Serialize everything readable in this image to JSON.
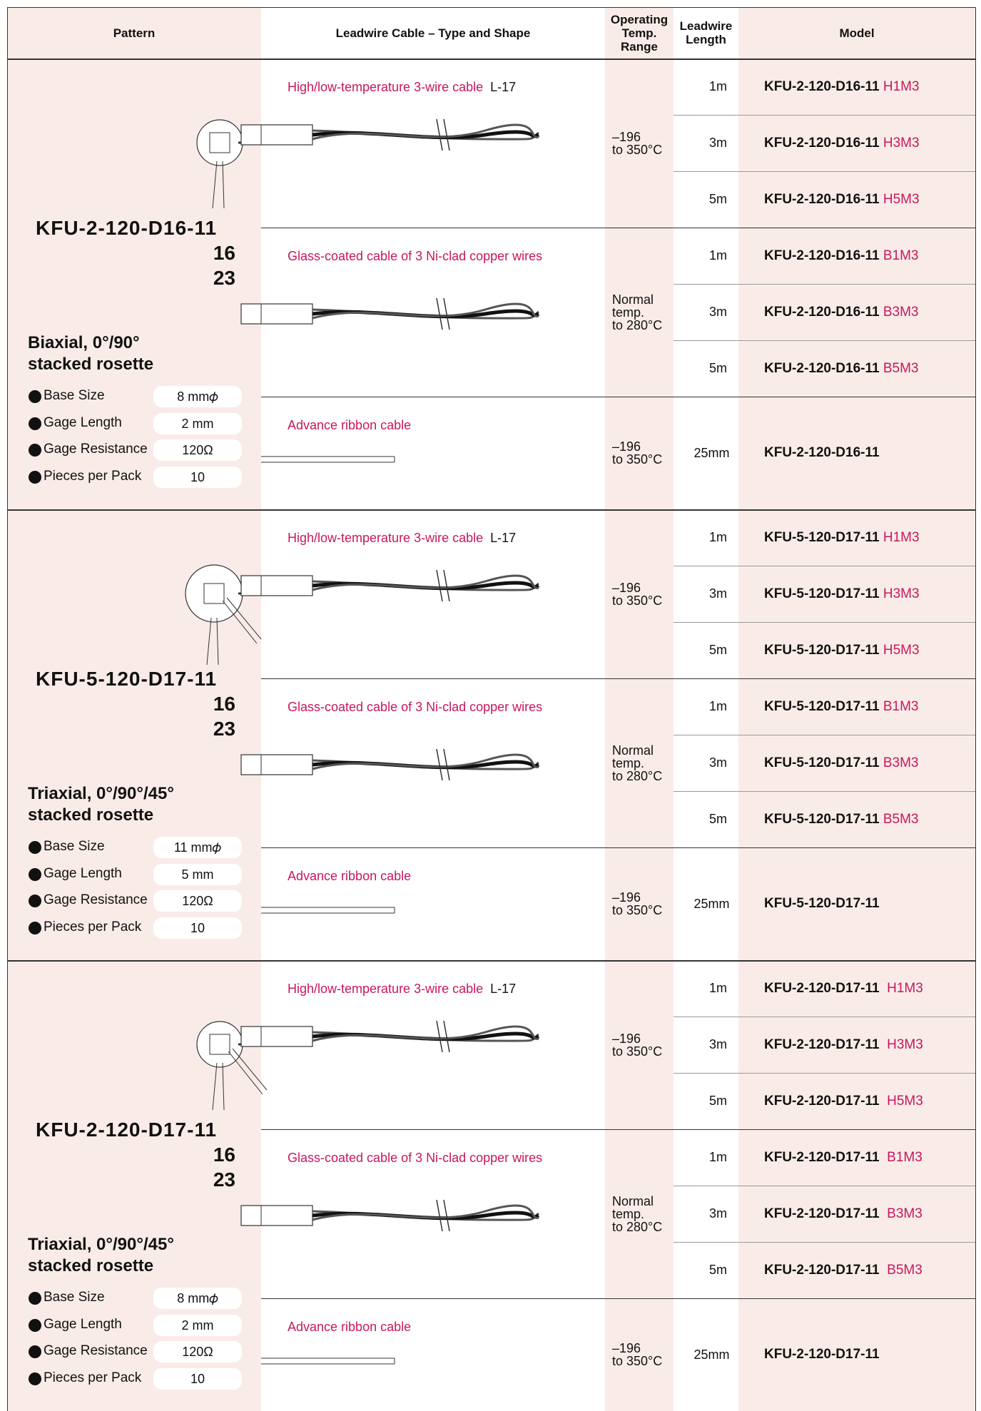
{
  "header": {
    "pattern": "Pattern",
    "cable": "Leadwire Cable – Type and Shape",
    "temp": [
      "Operating",
      "Temp.",
      "Range"
    ],
    "length": [
      "Leadwire",
      "Length"
    ],
    "model": "Model"
  },
  "sections": [
    {
      "model": "KFU-2-120-D16-11",
      "alts": [
        "16",
        "23"
      ],
      "desc": [
        "Biaxial, 0°/90°",
        "stacked rosette"
      ],
      "specs": [
        {
          "label": "Base Size",
          "value": "8 mm𝜙"
        },
        {
          "label": "Gage Length",
          "value": "2 mm"
        },
        {
          "label": "Gage Resistance",
          "value": "120Ω"
        },
        {
          "label": "Pieces per Pack",
          "value": "10"
        }
      ],
      "groups": [
        {
          "name": "High/low-temperature 3-wire cable",
          "code": "L-17",
          "temp": [
            "–196",
            "to 350°C"
          ],
          "rows": [
            {
              "length": "1m",
              "model": "KFU-2-120-D16-11",
              "suffix": "H1M3"
            },
            {
              "length": "3m",
              "model": "KFU-2-120-D16-11",
              "suffix": "H3M3"
            },
            {
              "length": "5m",
              "model": "KFU-2-120-D16-11",
              "suffix": "H5M3"
            }
          ]
        },
        {
          "name": "Glass-coated cable of 3 Ni-clad copper wires",
          "temp": [
            "Normal",
            "temp.",
            "to 280°C"
          ],
          "rows": [
            {
              "length": "1m",
              "model": "KFU-2-120-D16-11",
              "suffix": "B1M3"
            },
            {
              "length": "3m",
              "model": "KFU-2-120-D16-11",
              "suffix": "B3M3"
            },
            {
              "length": "5m",
              "model": "KFU-2-120-D16-11",
              "suffix": "B5M3"
            }
          ]
        },
        {
          "name": "Advance ribbon cable",
          "temp": [
            "–196",
            "to 350°C"
          ],
          "rows": [
            {
              "length": "25mm",
              "model": "KFU-2-120-D16-11"
            }
          ]
        }
      ]
    },
    {
      "model": "KFU-5-120-D17-11",
      "alts": [
        "16",
        "23"
      ],
      "desc": [
        "Triaxial, 0°/90°/45°",
        "stacked rosette"
      ],
      "specs": [
        {
          "label": "Base Size",
          "value": "11 mm𝜙"
        },
        {
          "label": "Gage Length",
          "value": "5 mm"
        },
        {
          "label": "Gage Resistance",
          "value": "120Ω"
        },
        {
          "label": "Pieces per Pack",
          "value": "10"
        }
      ],
      "groups": [
        {
          "name": "High/low-temperature 3-wire cable",
          "code": "L-17",
          "temp": [
            "–196",
            "to 350°C"
          ],
          "rows": [
            {
              "length": "1m",
              "model": "KFU-5-120-D17-11",
              "suffix": "H1M3"
            },
            {
              "length": "3m",
              "model": "KFU-5-120-D17-11",
              "suffix": "H3M3"
            },
            {
              "length": "5m",
              "model": "KFU-5-120-D17-11",
              "suffix": "H5M3"
            }
          ]
        },
        {
          "name": "Glass-coated cable of 3 Ni-clad copper wires",
          "temp": [
            "Normal",
            "temp.",
            "to 280°C"
          ],
          "rows": [
            {
              "length": "1m",
              "model": "KFU-5-120-D17-11",
              "suffix": "B1M3"
            },
            {
              "length": "3m",
              "model": "KFU-5-120-D17-11",
              "suffix": "B3M3"
            },
            {
              "length": "5m",
              "model": "KFU-5-120-D17-11",
              "suffix": "B5M3"
            }
          ]
        },
        {
          "name": "Advance ribbon cable",
          "temp": [
            "–196",
            "to 350°C"
          ],
          "rows": [
            {
              "length": "25mm",
              "model": "KFU-5-120-D17-11"
            }
          ]
        }
      ]
    },
    {
      "model": "KFU-2-120-D17-11",
      "alts": [
        "16",
        "23"
      ],
      "desc": [
        "Triaxial, 0°/90°/45°",
        "stacked rosette"
      ],
      "specs": [
        {
          "label": "Base Size",
          "value": "8 mm𝜙"
        },
        {
          "label": "Gage Length",
          "value": "2 mm"
        },
        {
          "label": "Gage Resistance",
          "value": "120Ω"
        },
        {
          "label": "Pieces per Pack",
          "value": "10"
        }
      ],
      "groups": [
        {
          "name": "High/low-temperature 3-wire cable",
          "code": "L-17",
          "temp": [
            "–196",
            "to 350°C"
          ],
          "rows": [
            {
              "length": "1m",
              "model": "KFU-2-120-D17-11",
              "suffix": "H1M3"
            },
            {
              "length": "3m",
              "model": "KFU-2-120-D17-11",
              "suffix": "H3M3"
            },
            {
              "length": "5m",
              "model": "KFU-2-120-D17-11",
              "suffix": "H5M3"
            }
          ]
        },
        {
          "name": "Glass-coated cable of 3 Ni-clad copper wires",
          "temp": [
            "Normal",
            "temp.",
            "to 280°C"
          ],
          "rows": [
            {
              "length": "1m",
              "model": "KFU-2-120-D17-11",
              "suffix": "B1M3"
            },
            {
              "length": "3m",
              "model": "KFU-2-120-D17-11",
              "suffix": "B3M3"
            },
            {
              "length": "5m",
              "model": "KFU-2-120-D17-11",
              "suffix": "B5M3"
            }
          ]
        },
        {
          "name": "Advance ribbon cable",
          "temp": [
            "–196",
            "to 350°C"
          ],
          "rows": [
            {
              "length": "25mm",
              "model": "KFU-2-120-D17-11"
            }
          ]
        }
      ]
    }
  ]
}
